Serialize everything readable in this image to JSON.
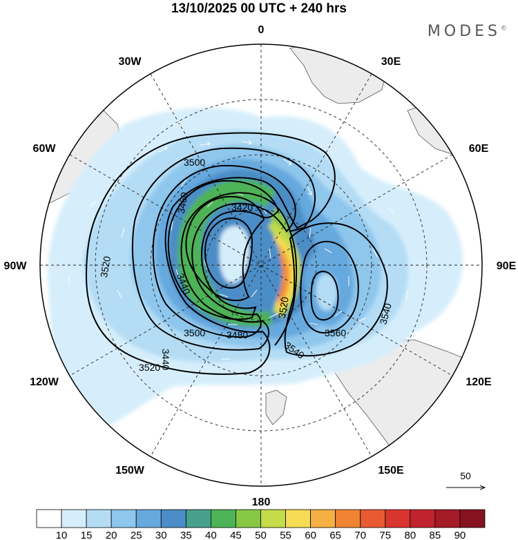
{
  "title": "13/10/2025  00 UTC  + 240 hrs",
  "brand": {
    "name": "MODES",
    "mark": "©"
  },
  "longitude_labels": {
    "top": "0",
    "bottom": "180",
    "left": "90W",
    "right": "90E",
    "upper_left_30": "30W",
    "upper_right_30": "30E",
    "upper_left_60": "60W",
    "upper_right_60": "60E",
    "lower_left_120": "120W",
    "lower_right_120": "120E",
    "lower_left_150": "150W",
    "lower_right_150": "150E"
  },
  "contours": {
    "c3420": "3420",
    "c3440": "3440",
    "c3460": "3460",
    "c3480": "3480",
    "c3500a": "3500",
    "c3500b": "3500",
    "c3520a": "3520",
    "c3520b": "3520",
    "c3520c": "3520",
    "c3540a": "3540",
    "c3540b": "3540",
    "c3560": "3560"
  },
  "wind_reference": {
    "value": "50"
  },
  "colorbar": {
    "labels": [
      "10",
      "15",
      "20",
      "25",
      "30",
      "35",
      "40",
      "45",
      "50",
      "55",
      "60",
      "65",
      "70",
      "75",
      "80",
      "85",
      "90"
    ],
    "colors": [
      "#ffffff",
      "#d6eefb",
      "#b4ddf5",
      "#8ec6ec",
      "#66a9de",
      "#4b8dc6",
      "#46a08c",
      "#4db356",
      "#86c843",
      "#c5dc4a",
      "#f6dc55",
      "#f5b043",
      "#f18432",
      "#e85a32",
      "#d8352e",
      "#c0232d",
      "#a51a27",
      "#861220"
    ]
  }
}
